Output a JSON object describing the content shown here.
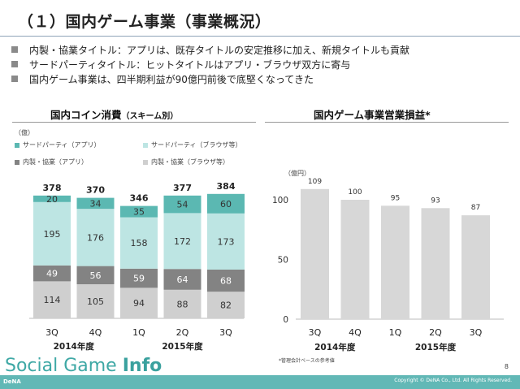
{
  "title": "（１）国内ゲーム事業（事業概況）",
  "bullets": [
    "内製・協業タイトル：アプリは、既存タイトルの安定推移に加え、新規タイトルも貢献",
    "サードパーティタイトル：ヒットタイトルはアプリ・ブラウザ双方に寄与",
    "国内ゲーム事業は、四半期利益が90億円前後で底堅くなってきた"
  ],
  "left_panel": {
    "title": "国内コイン消費",
    "subtitle": "（スキーム別）",
    "unit": "（億）"
  },
  "right_panel": {
    "title": "国内ゲーム事業営業損益*",
    "unit": "（億円）",
    "note": "*管理会計ベースの参考値"
  },
  "colors": {
    "third_app": "#5bb8b2",
    "third_browser": "#bde5e3",
    "inhouse_app": "#838383",
    "inhouse_browser": "#cfcfcf",
    "profit_bar": "#d7d7d7",
    "footer": "#62b8b6"
  },
  "chart_data": [
    {
      "type": "bar",
      "stacked": true,
      "categories": [
        "3Q",
        "4Q",
        "1Q",
        "2Q",
        "3Q"
      ],
      "year_groups": [
        {
          "label": "2014年度",
          "categories": [
            "3Q",
            "4Q"
          ]
        },
        {
          "label": "2015年度",
          "categories": [
            "1Q",
            "2Q",
            "3Q"
          ]
        }
      ],
      "series": [
        {
          "name": "内製・協業（ブラウザ等）",
          "values": [
            114,
            105,
            94,
            88,
            82
          ]
        },
        {
          "name": "内製・協業（アプリ）",
          "values": [
            49,
            56,
            59,
            64,
            68
          ]
        },
        {
          "name": "サードパーティ（ブラウザ等）",
          "values": [
            195,
            176,
            158,
            172,
            173
          ]
        },
        {
          "name": "サードパーティ（アプリ）",
          "values": [
            20,
            34,
            35,
            54,
            60
          ]
        }
      ],
      "totals": [
        378,
        370,
        346,
        377,
        384
      ],
      "legend": [
        "サードパーティ（アプリ）",
        "サードパーティ（ブラウザ等）",
        "内製・協業（アプリ）",
        "内製・協業（ブラウザ等）"
      ],
      "ylabel": "（億）",
      "ylim": [
        0,
        400
      ],
      "grid": false,
      "legend_position": "top"
    },
    {
      "type": "bar",
      "categories": [
        "3Q",
        "4Q",
        "1Q",
        "2Q",
        "3Q"
      ],
      "year_groups": [
        {
          "label": "2014年度",
          "categories": [
            "3Q",
            "4Q"
          ]
        },
        {
          "label": "2015年度",
          "categories": [
            "1Q",
            "2Q",
            "3Q"
          ]
        }
      ],
      "values": [
        109,
        100,
        95,
        93,
        87
      ],
      "yticks": [
        0,
        50,
        100
      ],
      "ylim": [
        0,
        120
      ],
      "ylabel": "（億円）",
      "grid": false
    }
  ],
  "footer": {
    "brand_regular": "Social Game ",
    "brand_bold": "Info",
    "dena": "DeNA",
    "page": "8",
    "copyright": "Copyright © DeNA Co., Ltd. All Rights Reserved."
  }
}
